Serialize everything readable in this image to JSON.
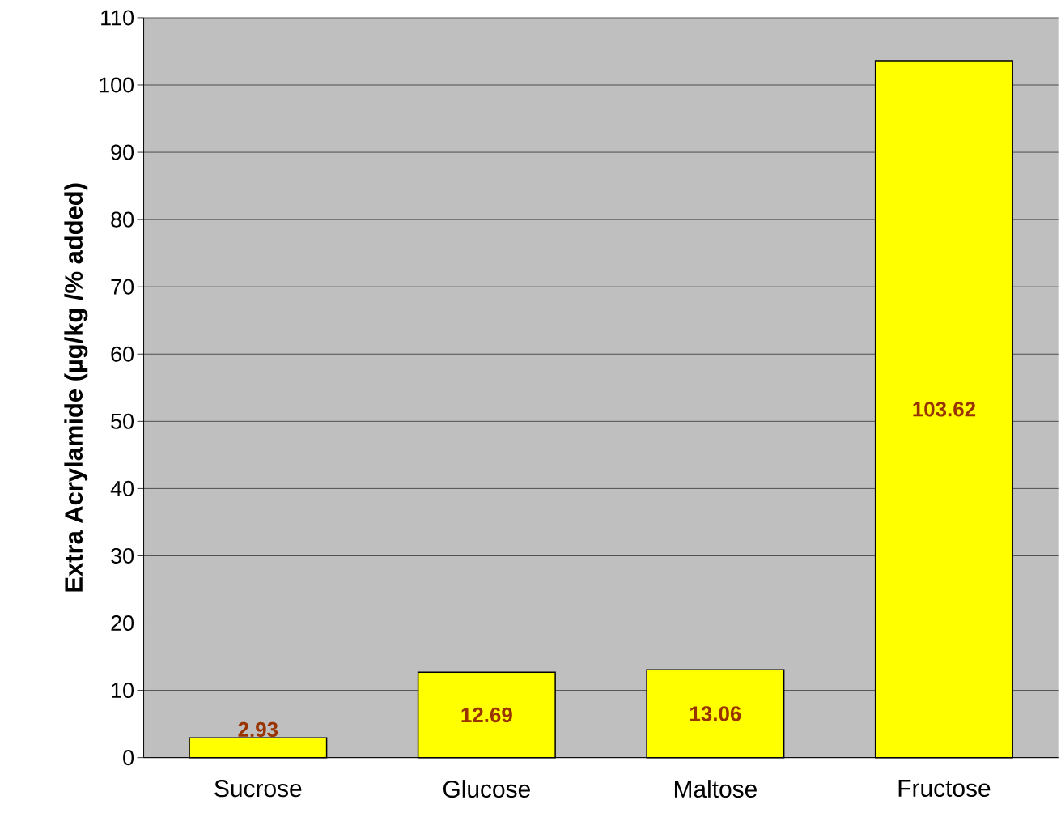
{
  "chart_data": {
    "type": "bar",
    "ylabel": "Extra Acrylamide (µg/kg /% added)",
    "categories": [
      "Sucrose",
      "Glucose",
      "Maltose",
      "Fructose"
    ],
    "values": [
      2.93,
      12.69,
      13.06,
      103.62
    ],
    "value_labels": [
      "2.93",
      "12.69",
      "13.06",
      "103.62"
    ],
    "color": "#ffff00",
    "ylim": [
      0,
      110
    ],
    "yticks": [
      0,
      10,
      20,
      30,
      40,
      50,
      60,
      70,
      80,
      90,
      100,
      110
    ],
    "grid": "y"
  }
}
